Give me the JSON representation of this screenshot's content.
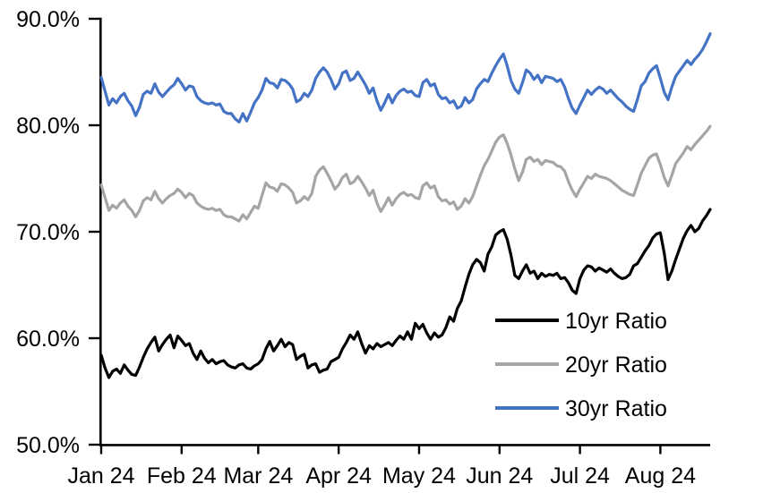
{
  "chart_data": {
    "type": "line",
    "title": "",
    "grid": false,
    "legend_position": "inside-lower-right",
    "n_points": 160,
    "y_axis": {
      "tick_labels": [
        "90.0%",
        "80.0%",
        "70.0%",
        "60.0%",
        "50.0%"
      ],
      "tick_values": [
        90,
        80,
        70,
        60,
        50
      ],
      "min": 50,
      "max": 90
    },
    "x_axis": {
      "tick_labels": [
        "Jan 24",
        "Feb 24",
        "Mar 24",
        "Apr 24",
        "May 24",
        "Jun 24",
        "Jul 24",
        "Aug 24"
      ],
      "tick_indices": [
        0,
        21,
        41,
        62,
        83,
        104,
        125,
        146
      ]
    },
    "series": [
      {
        "name": "10yr Ratio",
        "color": "#000000",
        "values": [
          58.4,
          57.2,
          56.3,
          56.9,
          57.1,
          56.7,
          57.5,
          57.0,
          56.6,
          56.5,
          57.3,
          58.2,
          59.0,
          59.6,
          60.1,
          58.8,
          59.4,
          59.9,
          60.3,
          59.1,
          60.2,
          59.8,
          59.3,
          59.5,
          58.6,
          58.0,
          58.8,
          58.1,
          57.7,
          58.0,
          57.6,
          57.8,
          57.9,
          57.5,
          57.3,
          57.2,
          57.5,
          57.6,
          57.2,
          57.1,
          57.4,
          57.6,
          58.0,
          59.0,
          59.7,
          58.8,
          59.3,
          59.9,
          59.2,
          59.6,
          59.4,
          58.0,
          58.3,
          58.5,
          57.2,
          57.5,
          57.6,
          56.8,
          57.0,
          57.1,
          57.8,
          58.0,
          58.2,
          59.0,
          59.6,
          60.3,
          59.9,
          60.6,
          59.5,
          58.6,
          59.3,
          59.0,
          59.5,
          59.2,
          59.4,
          59.6,
          59.3,
          59.8,
          60.2,
          59.9,
          60.6,
          59.9,
          61.4,
          60.9,
          61.3,
          60.5,
          59.9,
          60.5,
          60.1,
          60.3,
          61.0,
          62.0,
          61.6,
          62.8,
          63.5,
          64.8,
          66.0,
          66.9,
          67.4,
          67.1,
          66.3,
          67.9,
          68.6,
          69.7,
          70.0,
          70.2,
          69.3,
          67.8,
          65.9,
          65.6,
          66.3,
          66.9,
          66.1,
          66.3,
          65.6,
          66.1,
          65.8,
          66.0,
          65.9,
          66.1,
          65.6,
          65.7,
          65.2,
          64.5,
          64.2,
          65.6,
          66.4,
          66.8,
          66.7,
          66.3,
          66.6,
          66.4,
          66.2,
          66.5,
          66.1,
          65.8,
          65.6,
          65.7,
          66.0,
          66.8,
          67.0,
          67.6,
          68.2,
          68.7,
          69.4,
          69.8,
          69.9,
          68.0,
          65.5,
          66.3,
          67.4,
          68.4,
          69.4,
          70.1,
          70.6,
          70.0,
          70.3,
          71.0,
          71.5,
          72.1
        ]
      },
      {
        "name": "20yr Ratio",
        "color": "#A5A5A5",
        "values": [
          74.4,
          73.2,
          72.0,
          72.5,
          72.2,
          72.7,
          73.0,
          72.4,
          72.0,
          71.4,
          72.0,
          72.9,
          73.2,
          73.0,
          73.8,
          73.1,
          72.7,
          73.1,
          73.4,
          73.6,
          74.0,
          73.7,
          73.2,
          73.6,
          73.4,
          72.7,
          72.4,
          72.2,
          72.1,
          72.2,
          72.0,
          72.1,
          71.6,
          71.4,
          71.4,
          71.2,
          71.0,
          71.6,
          71.2,
          71.8,
          72.4,
          72.2,
          73.4,
          74.6,
          74.2,
          74.1,
          73.8,
          74.5,
          74.4,
          74.1,
          73.7,
          72.7,
          72.9,
          73.3,
          73.0,
          73.6,
          75.2,
          75.8,
          76.1,
          75.5,
          74.8,
          74.0,
          74.4,
          75.1,
          75.4,
          74.5,
          74.7,
          75.2,
          74.7,
          74.1,
          73.4,
          73.9,
          72.7,
          71.9,
          72.5,
          73.2,
          72.5,
          73.1,
          73.5,
          73.7,
          73.4,
          73.5,
          73.2,
          73.1,
          74.3,
          74.6,
          74.1,
          74.3,
          73.3,
          72.9,
          73.0,
          72.6,
          72.8,
          72.1,
          72.4,
          73.1,
          72.7,
          73.3,
          74.3,
          75.3,
          76.2,
          76.8,
          77.6,
          78.4,
          78.9,
          79.1,
          78.3,
          77.2,
          75.9,
          74.8,
          75.6,
          76.8,
          77.0,
          76.6,
          76.8,
          76.3,
          76.7,
          76.6,
          76.5,
          76.2,
          76.1,
          75.7,
          74.7,
          73.9,
          73.3,
          74.0,
          74.6,
          75.2,
          75.0,
          75.4,
          75.2,
          75.1,
          75.0,
          74.8,
          74.5,
          74.2,
          73.9,
          73.7,
          73.5,
          73.4,
          74.4,
          75.5,
          76.2,
          76.9,
          77.2,
          77.3,
          76.3,
          75.1,
          74.3,
          75.3,
          76.4,
          76.9,
          77.4,
          78.0,
          77.7,
          78.2,
          78.6,
          79.0,
          79.4,
          79.9
        ]
      },
      {
        "name": "30yr Ratio",
        "color": "#4472C4",
        "values": [
          84.5,
          83.2,
          81.9,
          82.5,
          82.1,
          82.7,
          83.0,
          82.3,
          81.8,
          80.9,
          81.7,
          82.9,
          83.2,
          83.0,
          83.9,
          83.1,
          82.7,
          83.1,
          83.5,
          83.8,
          84.4,
          83.9,
          83.3,
          83.7,
          83.6,
          82.7,
          82.3,
          82.1,
          82.0,
          82.1,
          81.9,
          82.0,
          81.3,
          81.1,
          81.1,
          80.6,
          80.3,
          81.1,
          80.4,
          81.2,
          82.1,
          82.6,
          83.3,
          84.4,
          84.0,
          83.9,
          83.5,
          84.3,
          84.2,
          83.9,
          83.4,
          82.2,
          82.4,
          83.0,
          82.7,
          83.3,
          84.4,
          85.0,
          85.4,
          85.0,
          84.3,
          83.4,
          83.9,
          84.9,
          85.1,
          84.2,
          84.4,
          85.0,
          84.4,
          83.8,
          83.0,
          83.5,
          82.3,
          81.4,
          82.1,
          82.9,
          82.1,
          82.8,
          83.2,
          83.4,
          83.1,
          83.2,
          82.8,
          82.7,
          84.0,
          84.3,
          83.7,
          83.9,
          82.9,
          82.5,
          82.6,
          82.1,
          82.3,
          81.6,
          81.8,
          82.6,
          82.1,
          82.4,
          83.4,
          83.9,
          84.3,
          84.1,
          84.9,
          85.6,
          86.2,
          86.7,
          85.6,
          84.2,
          83.4,
          83.0,
          84.0,
          85.2,
          84.9,
          84.3,
          84.7,
          84.0,
          84.6,
          84.5,
          84.4,
          84.1,
          84.3,
          83.6,
          82.5,
          81.6,
          81.1,
          81.9,
          82.6,
          83.3,
          82.9,
          83.3,
          83.6,
          83.4,
          83.0,
          83.3,
          82.9,
          82.5,
          82.2,
          81.8,
          81.5,
          81.3,
          82.4,
          83.7,
          84.1,
          84.9,
          85.3,
          85.6,
          84.4,
          83.1,
          82.4,
          83.6,
          84.6,
          85.1,
          85.6,
          86.1,
          85.7,
          86.2,
          86.6,
          87.1,
          87.8,
          88.6
        ]
      }
    ]
  },
  "colors": {
    "axis": "#000000",
    "background": "#FFFFFF"
  }
}
